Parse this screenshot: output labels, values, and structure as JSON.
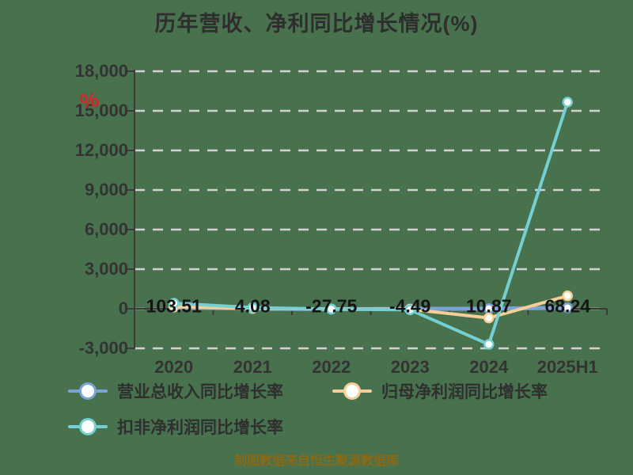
{
  "title": "历年营收、净利同比增长情况(%)",
  "watermark": "%",
  "footer": "制图数据来自恒生聚源数据库",
  "colors": {
    "background": "#48714e",
    "grid": "#d2d2d2",
    "axis": "#3a3a3a",
    "title_text": "#2e2e2e",
    "tick_text": "#333333",
    "data_label_text": "#141414",
    "footer_text": "#8a6a15",
    "watermark_red": "#d3282a",
    "series_revenue": "#7ba3d8",
    "series_net_profit": "#f6cf96",
    "series_deducted_profit": "#76cfd0",
    "marker_fill": "#ffffff"
  },
  "chart_data": {
    "type": "line",
    "title": "历年营收、净利同比增长情况(%)",
    "categories": [
      "2020",
      "2021",
      "2022",
      "2023",
      "2024",
      "2025H1"
    ],
    "series": [
      {
        "name": "营业总收入同比增长率",
        "color": "#7ba3d8",
        "values": [
          103.51,
          4.08,
          -27.75,
          -4.49,
          10.87,
          68.24
        ],
        "labeled": true
      },
      {
        "name": "归母净利润同比增长率",
        "color": "#f6cf96",
        "values": [
          150,
          30,
          -15,
          -40,
          -700,
          980
        ],
        "estimated_from_pixels": true
      },
      {
        "name": "扣非净利润同比增长率",
        "color": "#76cfd0",
        "values": [
          420,
          90,
          -30,
          -80,
          -2700,
          15660
        ],
        "estimated_from_pixels": true
      }
    ],
    "data_labels": [
      "103.51",
      "4.08",
      "-27.75",
      "-4.49",
      "10.87",
      "68.24"
    ],
    "xlabel": "",
    "ylabel": "",
    "ylim": [
      -3000,
      18000
    ],
    "ytick_step": 3000,
    "ytick_labels": [
      "18,000",
      "15,000",
      "12,000",
      "9,000",
      "6,000",
      "3,000",
      "0",
      "-3,000"
    ],
    "grid": true,
    "grid_style": "dashed",
    "legend_position": "bottom"
  },
  "legend": {
    "items": [
      {
        "label": "营业总收入同比增长率"
      },
      {
        "label": "归母净利润同比增长率"
      },
      {
        "label": "扣非净利润同比增长率"
      }
    ]
  }
}
